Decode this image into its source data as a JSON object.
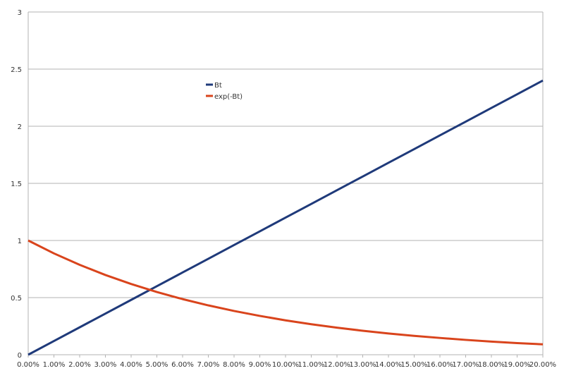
{
  "chart_data": {
    "type": "line",
    "x": [
      0,
      1,
      2,
      3,
      4,
      5,
      6,
      7,
      8,
      9,
      10,
      11,
      12,
      13,
      14,
      15,
      16,
      17,
      18,
      19,
      20
    ],
    "x_tick_labels": [
      "0.00%",
      "1.00%",
      "2.00%",
      "3.00%",
      "4.00%",
      "5.00%",
      "6.00%",
      "7.00%",
      "8.00%",
      "9.00%",
      "10.00%",
      "11.00%",
      "12.00%",
      "13.00%",
      "14.00%",
      "15.00%",
      "16.00%",
      "17.00%",
      "18.00%",
      "19.00%",
      "20.00%"
    ],
    "y_tick_labels": [
      "0",
      "0.5",
      "1",
      "1.5",
      "2",
      "2.5",
      "3"
    ],
    "y_ticks": [
      0,
      0.5,
      1,
      1.5,
      2,
      2.5,
      3
    ],
    "ylim": [
      0,
      3
    ],
    "xlim": [
      0,
      20
    ],
    "grid": "horizontal",
    "legend_position": "upper-left inside plot",
    "series": [
      {
        "name": "Bt",
        "color": "#1f3a7a",
        "values": [
          0,
          0.12,
          0.24,
          0.36,
          0.48,
          0.6,
          0.72,
          0.84,
          0.96,
          1.08,
          1.2,
          1.32,
          1.44,
          1.56,
          1.68,
          1.8,
          1.92,
          2.04,
          2.16,
          2.28,
          2.4
        ]
      },
      {
        "name": "exp(-Bt)",
        "color": "#d9441c",
        "values": [
          1.0,
          0.887,
          0.787,
          0.698,
          0.619,
          0.549,
          0.487,
          0.432,
          0.383,
          0.34,
          0.301,
          0.267,
          0.237,
          0.21,
          0.186,
          0.165,
          0.147,
          0.13,
          0.115,
          0.102,
          0.091
        ]
      }
    ]
  }
}
